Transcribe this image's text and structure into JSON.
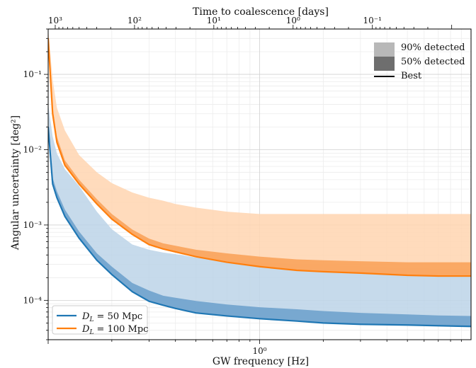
{
  "chart_data": {
    "type": "area",
    "title": "",
    "xlabel": "GW frequency [Hz]",
    "xlabel_top": "Time to coalescence [days]",
    "ylabel": "Angular uncertainty [deg²]",
    "x_scale": "log",
    "y_scale": "log",
    "xlim": [
      0.1,
      10
    ],
    "ylim": [
      3e-05,
      0.4
    ],
    "grid": true,
    "x_ticks": [
      {
        "value": 1,
        "label": "10⁰"
      }
    ],
    "y_ticks": [
      {
        "value": 0.0001,
        "label": "10⁻⁴"
      },
      {
        "value": 0.001,
        "label": "10⁻³"
      },
      {
        "value": 0.01,
        "label": "10⁻²"
      },
      {
        "value": 0.1,
        "label": "10⁻¹"
      }
    ],
    "top_ticks": [
      {
        "days": 1000,
        "label": "10³"
      },
      {
        "days": 100,
        "label": "10²"
      },
      {
        "days": 10,
        "label": "10¹"
      },
      {
        "days": 1,
        "label": "10⁰"
      },
      {
        "days": 0.1,
        "label": "10⁻¹"
      }
    ],
    "band_legend": {
      "position": "top-right",
      "items": [
        {
          "label": "90% detected",
          "style": "light-band"
        },
        {
          "label": "50% detected",
          "style": "dark-band"
        },
        {
          "label": "Best",
          "style": "line"
        }
      ]
    },
    "series_legend": {
      "position": "bottom-left"
    },
    "x": [
      0.1,
      0.105,
      0.11,
      0.12,
      0.14,
      0.17,
      0.2,
      0.25,
      0.3,
      0.35,
      0.4,
      0.5,
      0.7,
      1.0,
      1.5,
      2,
      3,
      5,
      7,
      10
    ],
    "series": [
      {
        "name": "D_L = 50 Mpc",
        "label_main": "D",
        "label_sub": "L",
        "label_rest": " = 50 Mpc",
        "color": "#1f77b4",
        "band_light_color": "#bcd3e8",
        "band_dark_color": "#6fa2cd",
        "best": [
          0.02,
          0.0035,
          0.0023,
          0.0013,
          0.00067,
          0.00034,
          0.00022,
          0.00013,
          9.7e-05,
          8.6e-05,
          7.8e-05,
          6.8e-05,
          6.2e-05,
          5.7e-05,
          5.3e-05,
          5e-05,
          4.8e-05,
          4.7e-05,
          4.6e-05,
          4.5e-05
        ],
        "p50": [
          0.024,
          0.0042,
          0.0028,
          0.0016,
          0.00082,
          0.00042,
          0.00028,
          0.00017,
          0.000135,
          0.000115,
          0.000108,
          9.8e-05,
          8.8e-05,
          8.1e-05,
          7.6e-05,
          7.2e-05,
          6.8e-05,
          6.5e-05,
          6.3e-05,
          6.2e-05
        ],
        "p90": [
          0.04,
          0.015,
          0.0089,
          0.0055,
          0.0033,
          0.0015,
          0.00088,
          0.00055,
          0.00047,
          0.00043,
          0.00041,
          0.00037,
          0.00034,
          0.00032,
          0.0003,
          0.00029,
          0.00028,
          0.00027,
          0.00026,
          0.00026
        ]
      },
      {
        "name": "D_L = 100 Mpc",
        "label_main": "D",
        "label_sub": "L",
        "label_rest": " = 100 Mpc",
        "color": "#ff7f0e",
        "band_light_color": "#ffd5b0",
        "band_dark_color": "#f9a35b",
        "best": [
          0.3,
          0.03,
          0.0125,
          0.0062,
          0.0035,
          0.0019,
          0.0012,
          0.00075,
          0.00055,
          0.00048,
          0.00044,
          0.00038,
          0.00032,
          0.00028,
          0.00025,
          0.00024,
          0.00023,
          0.000215,
          0.00021,
          0.00021
        ],
        "p50": [
          0.34,
          0.036,
          0.0148,
          0.0072,
          0.004,
          0.0022,
          0.0014,
          0.00087,
          0.00066,
          0.00057,
          0.00053,
          0.00047,
          0.00042,
          0.00038,
          0.00035,
          0.00034,
          0.00033,
          0.00032,
          0.00032,
          0.00032
        ],
        "p90": [
          0.4,
          0.085,
          0.036,
          0.018,
          0.0085,
          0.005,
          0.0036,
          0.0027,
          0.0023,
          0.0021,
          0.0019,
          0.0017,
          0.0015,
          0.0014,
          0.0014,
          0.0014,
          0.0014,
          0.0014,
          0.0014,
          0.0014
        ]
      }
    ]
  }
}
